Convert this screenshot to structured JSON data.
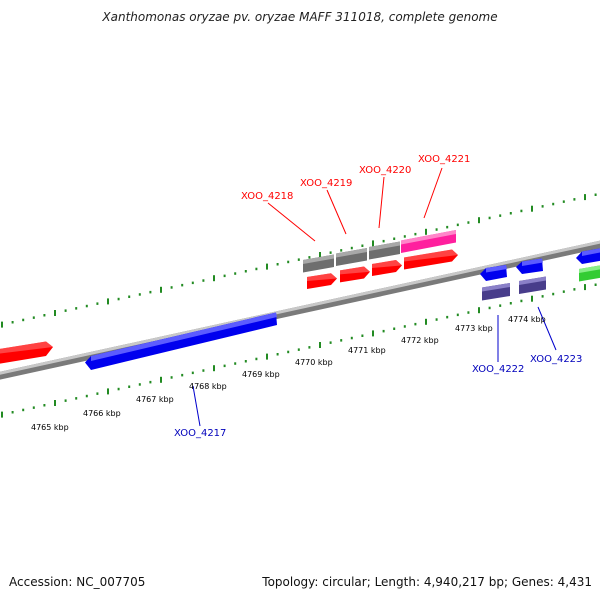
{
  "header": {
    "title": "Xanthomonas oryzae pv. oryzae MAFF 311018, complete genome"
  },
  "footer": {
    "accession_label": "Accession:",
    "accession": "NC_007705",
    "topology_label": "Topology:",
    "topology": "circular",
    "length_label": "Length:",
    "length": "4,940,217 bp",
    "genes_label": "Genes:",
    "genes": "4,431"
  },
  "colors": {
    "strand_forward": "#ff0000",
    "strand_reverse": "#0000ff",
    "tick": "#228b22",
    "label_forward": "#ff0000",
    "label_reverse": "#0000bb",
    "backbone": "#888888",
    "gray_feature": "#6e6e6e",
    "magenta_feature": "#ff1f9e",
    "purple_feature": "#483d8b",
    "green_feature": "#33cc33"
  },
  "scale": {
    "unit": "kbp",
    "labels": [
      {
        "text": "4765 kbp"
      },
      {
        "text": "4766 kbp"
      },
      {
        "text": "4767 kbp"
      },
      {
        "text": "4768 kbp"
      },
      {
        "text": "4769 kbp"
      },
      {
        "text": "4770 kbp"
      },
      {
        "text": "4771 kbp"
      },
      {
        "text": "4772 kbp"
      },
      {
        "text": "4773 kbp"
      },
      {
        "text": "4774 kbp"
      }
    ]
  },
  "gene_labels": {
    "forward": [
      "XOO_4218",
      "XOO_4219",
      "XOO_4220",
      "XOO_4221"
    ],
    "reverse": [
      "XOO_4217",
      "XOO_4222",
      "XOO_4223"
    ]
  }
}
